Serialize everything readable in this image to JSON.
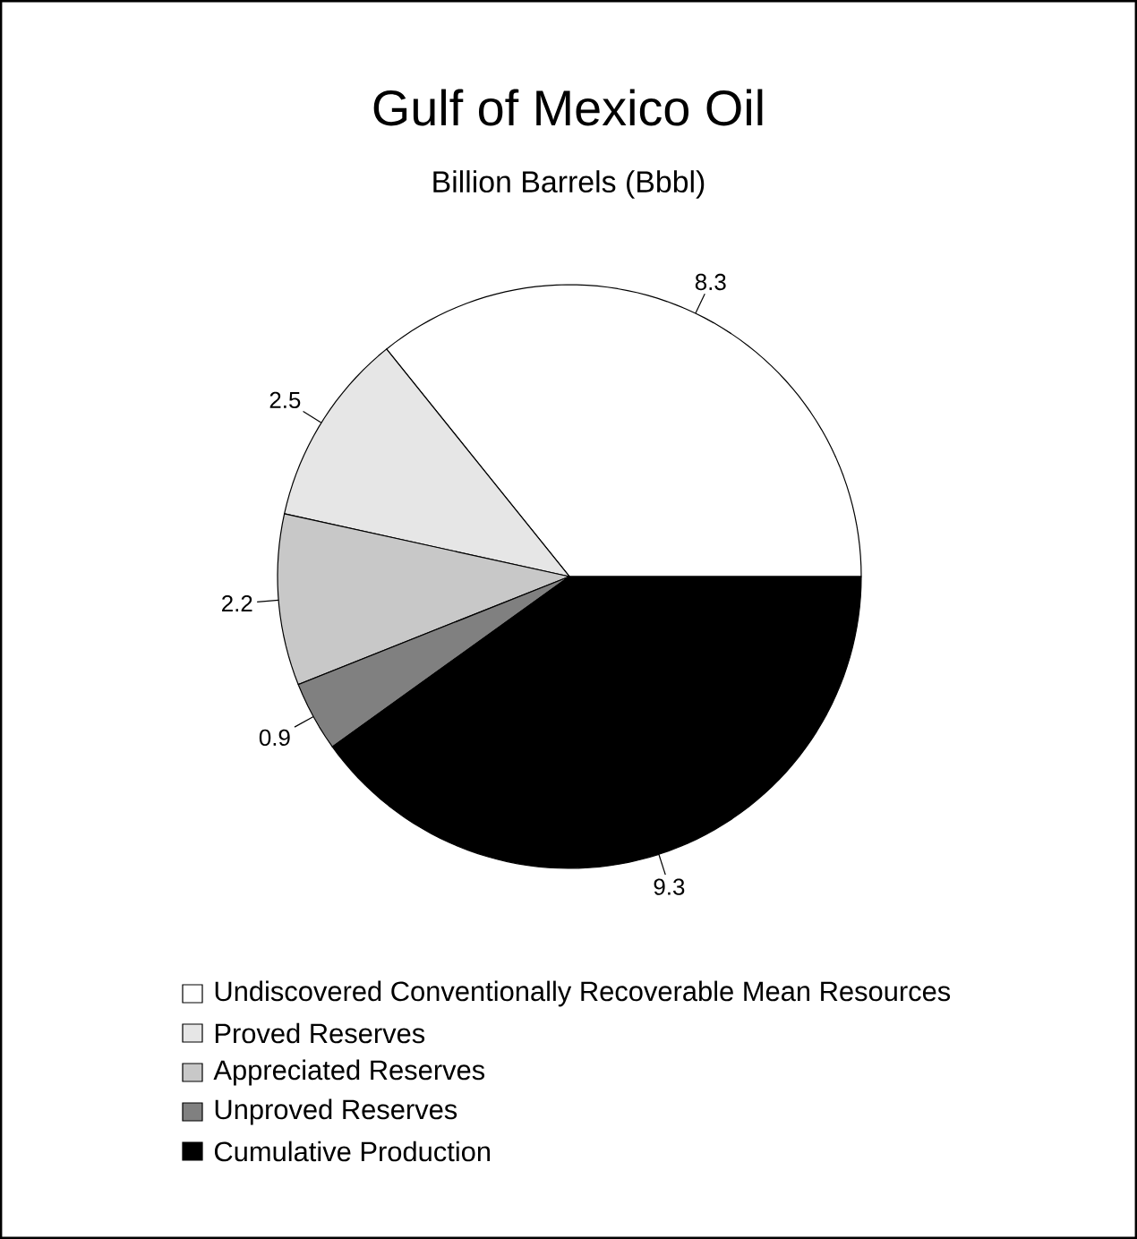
{
  "chart_data": {
    "type": "pie",
    "title": "Gulf of Mexico Oil",
    "subtitle": "Billion Barrels (Bbbl)",
    "categories": [
      "Undiscovered Conventionally Recoverable Mean Resources",
      "Proved Reserves",
      "Appreciated Reserves",
      "Unproved Reserves",
      "Cumulative Production"
    ],
    "values": [
      8.3,
      2.5,
      2.2,
      0.9,
      9.3
    ],
    "colors": [
      "#ffffff",
      "#e6e6e6",
      "#c8c8c8",
      "#808080",
      "#000000"
    ],
    "data_labels": true,
    "legend": "bottom"
  }
}
